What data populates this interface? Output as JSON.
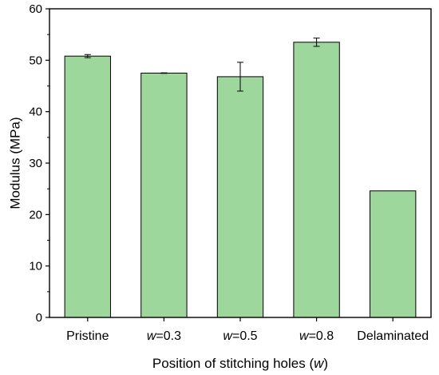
{
  "chart_data": {
    "type": "bar",
    "categories": [
      {
        "prefix": "",
        "label": "Pristine"
      },
      {
        "prefix": "w",
        "label": "=0.3"
      },
      {
        "prefix": "w",
        "label": "=0.5"
      },
      {
        "prefix": "w",
        "label": "=0.8"
      },
      {
        "prefix": "",
        "label": "Delaminated"
      }
    ],
    "values": [
      50.8,
      47.5,
      46.8,
      53.5,
      24.6
    ],
    "errors": [
      0.3,
      0.05,
      2.8,
      0.8,
      0
    ],
    "xlabel_main": "Position of stitching holes (",
    "xlabel_var": "w",
    "xlabel_end": ")",
    "ylabel": "Modulus (MPa)",
    "ylim": [
      0,
      60
    ],
    "yticks": [
      0,
      10,
      20,
      30,
      40,
      50,
      60
    ],
    "grid": false,
    "bar_color": "#9dd79b",
    "edge_color": "#000000"
  }
}
